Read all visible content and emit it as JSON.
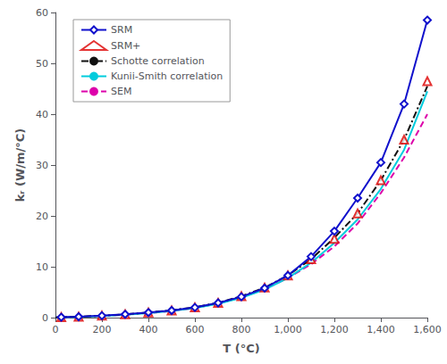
{
  "chart_data": {
    "type": "line",
    "x_label": "T (°C)",
    "y_label": "kᵣ (W/m/°C)",
    "xlim": [
      0,
      1600
    ],
    "ylim": [
      0,
      60
    ],
    "xticks": [
      0,
      200,
      400,
      600,
      800,
      1000,
      1200,
      1400,
      1600
    ],
    "yticks": [
      0,
      10,
      20,
      30,
      40,
      50,
      60
    ],
    "grid": false,
    "legend": "upper left",
    "series": [
      {
        "name": "SRM",
        "type": "line",
        "color": "#1010cc",
        "line_style": "solid",
        "marker": "diamond",
        "x": [
          25,
          100,
          200,
          300,
          400,
          500,
          600,
          700,
          800,
          900,
          1000,
          1100,
          1200,
          1300,
          1400,
          1500,
          1600
        ],
        "values": [
          0.08,
          0.18,
          0.38,
          0.65,
          1.0,
          1.4,
          2.0,
          2.9,
          4.1,
          5.8,
          8.3,
          12.0,
          17.0,
          23.5,
          30.5,
          42.0,
          58.5
        ]
      },
      {
        "name": "SRM+",
        "type": "scatter",
        "color": "#dd0000",
        "marker": "triangle",
        "x": [
          25,
          100,
          200,
          300,
          400,
          500,
          600,
          700,
          800,
          900,
          1000,
          1100,
          1200,
          1300,
          1400,
          1500,
          1600
        ],
        "values": [
          0.08,
          0.18,
          0.38,
          0.65,
          1.0,
          1.4,
          2.0,
          2.9,
          4.2,
          5.9,
          8.3,
          11.5,
          15.5,
          20.5,
          27.0,
          35.0,
          46.5
        ]
      },
      {
        "name": "Schotte correlation",
        "type": "line",
        "color": "#111111",
        "line_style": "dashdot",
        "x": [
          0,
          100,
          200,
          300,
          400,
          500,
          600,
          700,
          800,
          900,
          1000,
          1100,
          1200,
          1300,
          1400,
          1500,
          1600
        ],
        "values": [
          0.05,
          0.18,
          0.38,
          0.65,
          1.0,
          1.45,
          2.05,
          2.9,
          4.2,
          5.9,
          8.3,
          11.5,
          15.7,
          20.5,
          27.0,
          35.0,
          45.5
        ]
      },
      {
        "name": "Kunii-Smith correlation",
        "type": "line",
        "color": "#00ccdd",
        "line_style": "solid",
        "x": [
          0,
          100,
          200,
          300,
          400,
          500,
          600,
          700,
          800,
          900,
          1000,
          1100,
          1200,
          1300,
          1400,
          1500,
          1600
        ],
        "values": [
          0.03,
          0.15,
          0.32,
          0.56,
          0.88,
          1.3,
          1.88,
          2.7,
          3.9,
          5.5,
          7.8,
          10.8,
          14.7,
          19.3,
          25.3,
          33.0,
          44.5
        ]
      },
      {
        "name": "SEM",
        "type": "line",
        "color": "#dd00aa",
        "line_style": "dashed",
        "x": [
          0,
          100,
          200,
          300,
          400,
          500,
          600,
          700,
          800,
          900,
          1000,
          1100,
          1200,
          1300,
          1400,
          1500,
          1600
        ],
        "values": [
          0.03,
          0.15,
          0.32,
          0.56,
          0.88,
          1.3,
          1.9,
          2.8,
          4.0,
          5.6,
          7.8,
          10.5,
          14.0,
          18.5,
          24.5,
          31.5,
          40.0
        ]
      }
    ]
  }
}
